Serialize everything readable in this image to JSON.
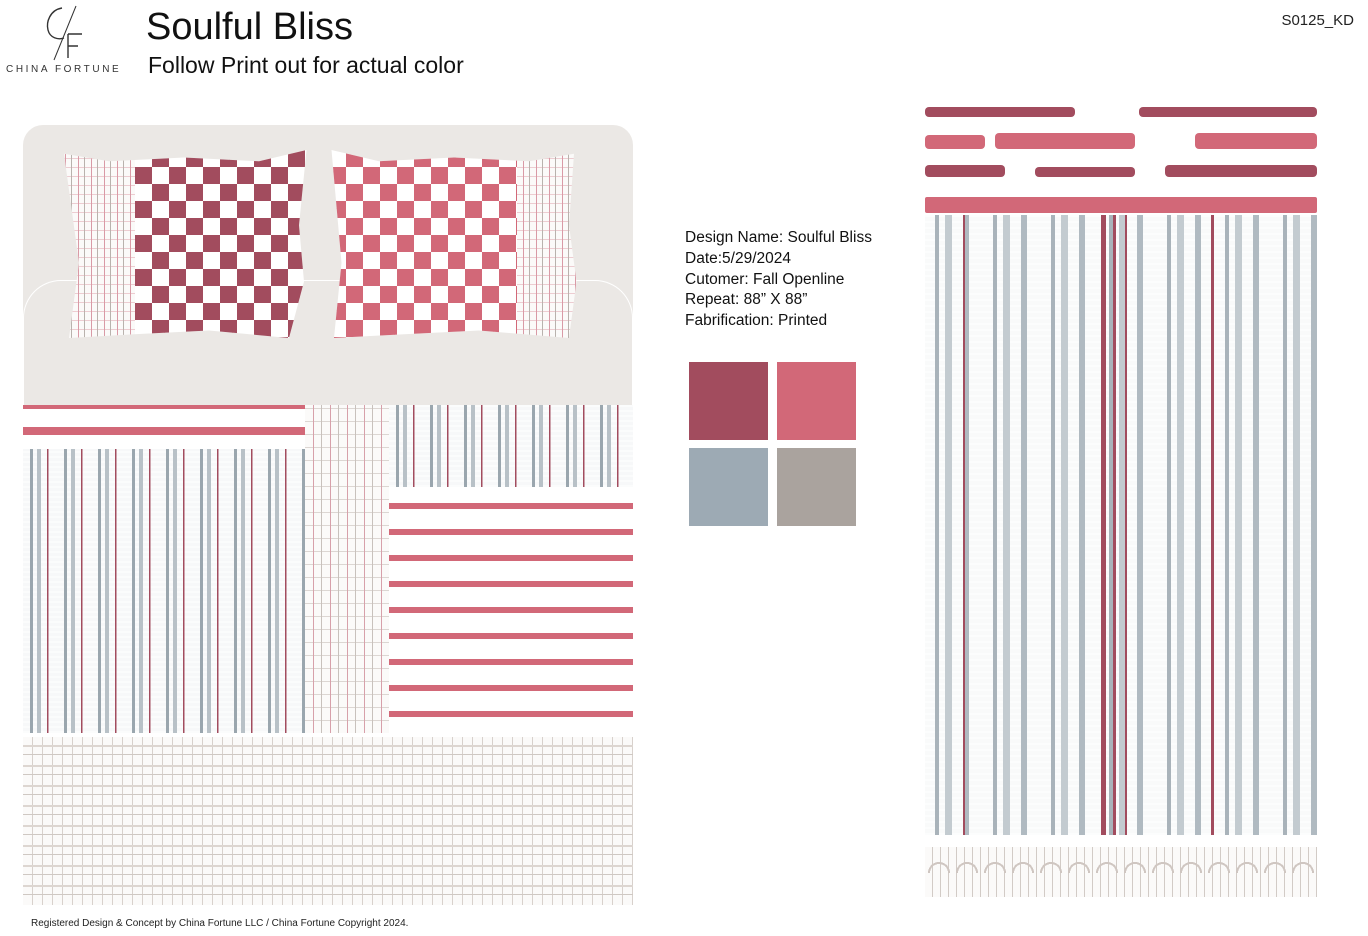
{
  "header": {
    "logo_text": "CHINA FORTUNE",
    "title": "Soulful Bliss",
    "subtitle": "Follow Print out for actual color",
    "code": "S0125_KD"
  },
  "specs": [
    "Design Name: Soulful Bliss",
    "Date:5/29/2024",
    "Cutomer: Fall Openline",
    "Repeat: 88” X 88”",
    "Fabrification: Printed"
  ],
  "palette": [
    "#a24c5e",
    "#d26878",
    "#9daab4",
    "#aaa39e"
  ],
  "footer": {
    "copyright": "Registered Design & Concept by China Fortune LLC / China Fortune Copyright 2024."
  }
}
